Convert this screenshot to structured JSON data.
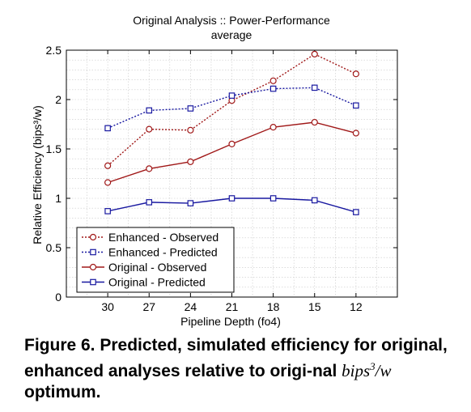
{
  "chart_data": {
    "type": "line",
    "title": "Original Analysis :: Power-Performance",
    "subtitle": "average",
    "xlabel": "Pipeline Depth (fo4)",
    "ylabel": "Relative Efficiency (bips³/w)",
    "categories": [
      "30",
      "27",
      "24",
      "21",
      "18",
      "15",
      "12"
    ],
    "ylim": [
      0,
      2.5
    ],
    "yticks": [
      "0",
      "0.5",
      "1",
      "1.5",
      "2",
      "2.5"
    ],
    "grid": true,
    "legend_position": "bottom-left",
    "series": [
      {
        "name": "Enhanced - Observed",
        "color": "#a01818",
        "marker": "circle",
        "dashed": true,
        "values": [
          1.33,
          1.7,
          1.69,
          1.99,
          2.19,
          2.46,
          2.26
        ]
      },
      {
        "name": "Enhanced - Predicted",
        "color": "#1818a0",
        "marker": "square",
        "dashed": true,
        "values": [
          1.71,
          1.89,
          1.91,
          2.04,
          2.11,
          2.12,
          1.94
        ]
      },
      {
        "name": "Original - Observed",
        "color": "#a01818",
        "marker": "circle",
        "dashed": false,
        "values": [
          1.16,
          1.3,
          1.37,
          1.55,
          1.72,
          1.77,
          1.66
        ]
      },
      {
        "name": "Original - Predicted",
        "color": "#1818a0",
        "marker": "square",
        "dashed": false,
        "values": [
          0.87,
          0.96,
          0.95,
          1.0,
          1.0,
          0.98,
          0.86
        ]
      }
    ]
  },
  "caption": {
    "prefix": "Figure 6. Predicted, simulated efficiency for original, enhanced analyses relative to origi-nal ",
    "math_base": "bips",
    "math_exp": "3",
    "math_rest": "/w",
    "suffix": " optimum."
  }
}
